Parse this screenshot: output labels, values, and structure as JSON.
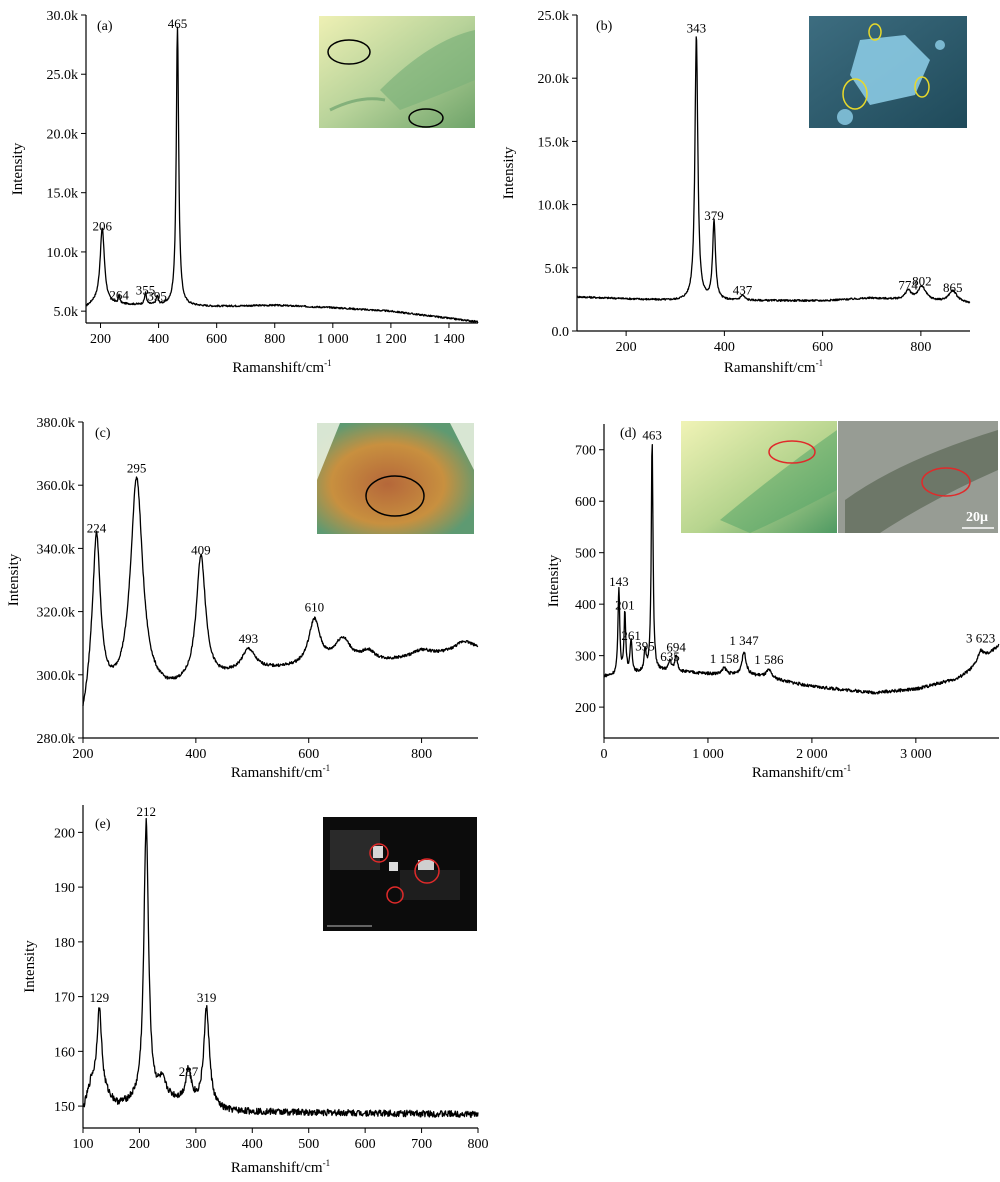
{
  "chart_data": [
    {
      "id": "a",
      "type": "line",
      "panel_label": "(a)",
      "xlabel": "Ramanshift/cm",
      "xlabel_sup": "-1",
      "ylabel": "Intensity",
      "xlim": [
        150,
        1500
      ],
      "ylim": [
        4000,
        30000
      ],
      "xticks": [
        200,
        400,
        600,
        800,
        1000,
        1200,
        1400
      ],
      "xtick_labels": [
        "200",
        "400",
        "600",
        "800",
        "1 000",
        "1 200",
        "1 400"
      ],
      "yticks": [
        5000,
        10000,
        15000,
        20000,
        25000,
        30000
      ],
      "ytick_labels": [
        "5.0k",
        "10.0k",
        "15.0k",
        "20.0k",
        "25.0k",
        "30.0k"
      ],
      "baseline": [
        [
          150,
          5300
        ],
        [
          175,
          5600
        ],
        [
          600,
          5400
        ],
        [
          800,
          5500
        ],
        [
          1000,
          5300
        ],
        [
          1200,
          5000
        ],
        [
          1400,
          4400
        ],
        [
          1500,
          4100
        ]
      ],
      "peaks": [
        [
          206,
          6400,
          9
        ],
        [
          264,
          700,
          3
        ],
        [
          355,
          1000,
          4
        ],
        [
          395,
          700,
          4
        ],
        [
          465,
          23500,
          5
        ]
      ],
      "noise": 70,
      "peak_labels": [
        {
          "x": 206,
          "y": 11800,
          "text": "206"
        },
        {
          "x": 264,
          "y": 6000,
          "text": "264"
        },
        {
          "x": 355,
          "y": 6400,
          "text": "355"
        },
        {
          "x": 395,
          "y": 5900,
          "text": "395"
        },
        {
          "x": 465,
          "y": 28900,
          "text": "465"
        }
      ]
    },
    {
      "id": "b",
      "type": "line",
      "panel_label": "(b)",
      "xlabel": "Ramanshift/cm",
      "xlabel_sup": "-1",
      "ylabel": "Intensity",
      "xlim": [
        100,
        900
      ],
      "ylim": [
        0,
        25000
      ],
      "xticks": [
        200,
        400,
        600,
        800
      ],
      "xtick_labels": [
        "200",
        "400",
        "600",
        "800"
      ],
      "yticks": [
        0,
        5000,
        10000,
        15000,
        20000,
        25000
      ],
      "ytick_labels": [
        "0.0",
        "5.0k",
        "10.0k",
        "15.0k",
        "20.0k",
        "25.0k"
      ],
      "baseline": [
        [
          100,
          2700
        ],
        [
          300,
          2400
        ],
        [
          600,
          2400
        ],
        [
          700,
          2600
        ],
        [
          900,
          2200
        ]
      ],
      "peaks": [
        [
          343,
          21000,
          3.5
        ],
        [
          379,
          6200,
          3.5
        ],
        [
          437,
          400,
          5
        ],
        [
          774,
          700,
          7
        ],
        [
          802,
          1100,
          10
        ],
        [
          865,
          900,
          10
        ]
      ],
      "noise": 70,
      "peak_labels": [
        {
          "x": 343,
          "y": 23600,
          "text": "343"
        },
        {
          "x": 379,
          "y": 8800,
          "text": "379"
        },
        {
          "x": 437,
          "y": 2900,
          "text": "437"
        },
        {
          "x": 774,
          "y": 3300,
          "text": "774"
        },
        {
          "x": 802,
          "y": 3600,
          "text": "802"
        },
        {
          "x": 865,
          "y": 3100,
          "text": "865"
        }
      ]
    },
    {
      "id": "c",
      "type": "line",
      "panel_label": "(c)",
      "xlabel": "Ramanshift/cm",
      "xlabel_sup": "-1",
      "ylabel": "Intensity",
      "xlim": [
        200,
        900
      ],
      "ylim": [
        280000,
        380000
      ],
      "xticks": [
        200,
        400,
        600,
        800
      ],
      "xtick_labels": [
        "200",
        "400",
        "600",
        "800"
      ],
      "yticks": [
        280000,
        300000,
        320000,
        340000,
        360000,
        380000
      ],
      "ytick_labels": [
        "280.0k",
        "300.0k",
        "320.0k",
        "340.0k",
        "360.0k",
        "380.0k"
      ],
      "baseline": [
        [
          200,
          284000
        ],
        [
          215,
          294000
        ],
        [
          250,
          293000
        ],
        [
          350,
          294000
        ],
        [
          500,
          301000
        ],
        [
          700,
          303000
        ],
        [
          900,
          308000
        ]
      ],
      "peaks": [
        [
          224,
          49000,
          8
        ],
        [
          295,
          68000,
          13
        ],
        [
          409,
          40000,
          10
        ],
        [
          493,
          6500,
          14
        ],
        [
          610,
          14500,
          12
        ],
        [
          660,
          8000,
          18
        ],
        [
          705,
          3500,
          15
        ],
        [
          800,
          2000,
          20
        ],
        [
          875,
          3000,
          18
        ]
      ],
      "noise": 450,
      "peak_labels": [
        {
          "x": 224,
          "y": 345000,
          "text": "224"
        },
        {
          "x": 295,
          "y": 364000,
          "text": "295"
        },
        {
          "x": 409,
          "y": 338000,
          "text": "409"
        },
        {
          "x": 493,
          "y": 310000,
          "text": "493"
        },
        {
          "x": 610,
          "y": 320000,
          "text": "610"
        }
      ]
    },
    {
      "id": "d",
      "type": "line",
      "panel_label": "(d)",
      "xlabel": "Ramanshift/cm",
      "xlabel_sup": "-1",
      "ylabel": "Intensity",
      "xlim": [
        0,
        3800
      ],
      "ylim": [
        140,
        750
      ],
      "xticks": [
        0,
        1000,
        2000,
        3000
      ],
      "xtick_labels": [
        "0",
        "1 000",
        "2 000",
        "3 000"
      ],
      "yticks": [
        200,
        300,
        400,
        500,
        600,
        700
      ],
      "ytick_labels": [
        "200",
        "300",
        "400",
        "500",
        "600",
        "700"
      ],
      "baseline": [
        [
          100,
          260
        ],
        [
          600,
          270
        ],
        [
          1000,
          265
        ],
        [
          1500,
          260
        ],
        [
          2000,
          240
        ],
        [
          2600,
          228
        ],
        [
          3000,
          235
        ],
        [
          3400,
          255
        ],
        [
          3600,
          280
        ],
        [
          3800,
          320
        ]
      ],
      "peaks": [
        [
          143,
          170,
          10
        ],
        [
          201,
          120,
          10
        ],
        [
          261,
          65,
          12
        ],
        [
          395,
          40,
          12
        ],
        [
          463,
          450,
          10
        ],
        [
          635,
          20,
          15
        ],
        [
          694,
          30,
          15
        ],
        [
          1158,
          12,
          25
        ],
        [
          1347,
          45,
          25
        ],
        [
          1586,
          15,
          30
        ],
        [
          3623,
          25,
          40
        ]
      ],
      "noise": 3,
      "peak_labels": [
        {
          "x": 143,
          "y": 435,
          "text": "143"
        },
        {
          "x": 201,
          "y": 390,
          "text": "201"
        },
        {
          "x": 261,
          "y": 330,
          "text": "261"
        },
        {
          "x": 395,
          "y": 310,
          "text": "395"
        },
        {
          "x": 463,
          "y": 720,
          "text": "463"
        },
        {
          "x": 635,
          "y": 290,
          "text": "635"
        },
        {
          "x": 694,
          "y": 308,
          "text": "694"
        },
        {
          "x": 1158,
          "y": 286,
          "text": "1 158"
        },
        {
          "x": 1347,
          "y": 321,
          "text": "1 347"
        },
        {
          "x": 1586,
          "y": 284,
          "text": "1 586"
        },
        {
          "x": 3623,
          "y": 326,
          "text": "3 623"
        }
      ],
      "inset_scale_text": "20μ"
    },
    {
      "id": "e",
      "type": "line",
      "panel_label": "(e)",
      "xlabel": "Ramanshift/cm",
      "xlabel_sup": "-1",
      "ylabel": "Intensity",
      "xlim": [
        100,
        800
      ],
      "ylim": [
        146,
        205
      ],
      "xticks": [
        100,
        200,
        300,
        400,
        500,
        600,
        700,
        800
      ],
      "xtick_labels": [
        "100",
        "200",
        "300",
        "400",
        "500",
        "600",
        "700",
        "800"
      ],
      "yticks": [
        150,
        160,
        170,
        180,
        190,
        200
      ],
      "ytick_labels": [
        "150",
        "160",
        "170",
        "180",
        "190",
        "200"
      ],
      "baseline": [
        [
          100,
          149
        ],
        [
          115,
          154
        ],
        [
          160,
          150
        ],
        [
          250,
          151
        ],
        [
          350,
          149
        ],
        [
          800,
          148.5
        ]
      ],
      "peaks": [
        [
          129,
          15,
          5
        ],
        [
          212,
          51,
          5
        ],
        [
          287,
          6,
          6
        ],
        [
          319,
          18,
          6
        ],
        [
          240,
          3,
          8
        ]
      ],
      "noise": 0.6,
      "peak_labels": [
        {
          "x": 129,
          "y": 169,
          "text": "129"
        },
        {
          "x": 212,
          "y": 203,
          "text": "212"
        },
        {
          "x": 287,
          "y": 155.5,
          "text": "287"
        },
        {
          "x": 319,
          "y": 169,
          "text": "319"
        }
      ]
    }
  ]
}
